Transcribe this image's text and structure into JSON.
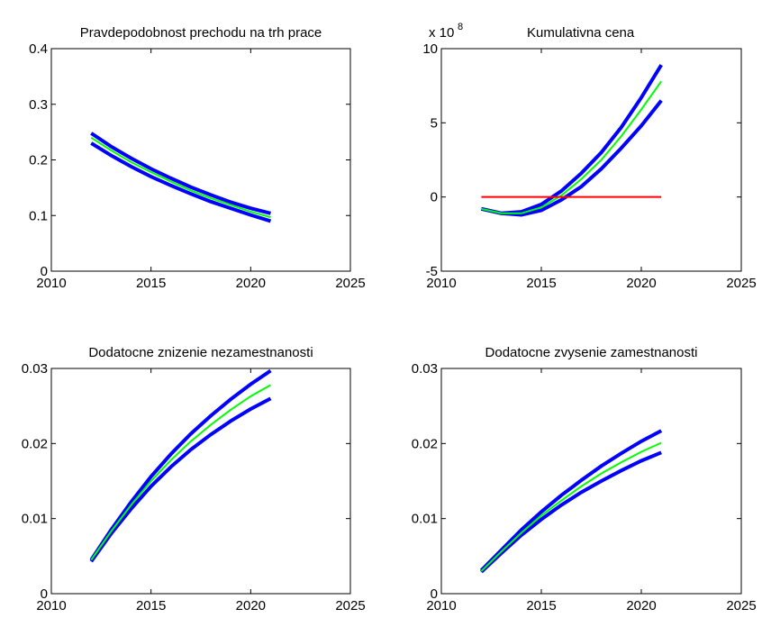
{
  "chart_data": [
    {
      "type": "line",
      "title": "Pravdepodobnost prechodu na trh prace",
      "x": [
        2012,
        2013,
        2014,
        2015,
        2016,
        2017,
        2018,
        2019,
        2020,
        2021
      ],
      "xlim": [
        2010,
        2025
      ],
      "xticks": [
        2010,
        2015,
        2020,
        2025
      ],
      "ylim": [
        0,
        0.4
      ],
      "yticks": [
        0,
        0.1,
        0.2,
        0.3,
        0.4
      ],
      "series": [
        {
          "color": "#0000ff",
          "values": [
            0.248,
            0.224,
            0.203,
            0.184,
            0.167,
            0.151,
            0.137,
            0.124,
            0.113,
            0.104
          ]
        },
        {
          "color": "#0000ff",
          "values": [
            0.23,
            0.208,
            0.188,
            0.17,
            0.154,
            0.139,
            0.125,
            0.113,
            0.101,
            0.09
          ]
        },
        {
          "color": "#00ff00",
          "values": [
            0.24,
            0.217,
            0.196,
            0.178,
            0.161,
            0.145,
            0.131,
            0.119,
            0.107,
            0.097
          ]
        }
      ]
    },
    {
      "type": "line",
      "title": "Kumulativna cena",
      "y_offset_text": "x 10",
      "y_offset_exponent": "8",
      "x": [
        2012,
        2013,
        2014,
        2015,
        2016,
        2017,
        2018,
        2019,
        2020,
        2021
      ],
      "xlim": [
        2010,
        2025
      ],
      "xticks": [
        2010,
        2015,
        2020,
        2025
      ],
      "ylim": [
        -5,
        10
      ],
      "yticks": [
        -5,
        0,
        5,
        10
      ],
      "series": [
        {
          "color": "#0000ff",
          "values": [
            -0.8,
            -1.1,
            -1.0,
            -0.5,
            0.4,
            1.6,
            3.0,
            4.7,
            6.7,
            8.9
          ]
        },
        {
          "color": "#0000ff",
          "values": [
            -0.8,
            -1.1,
            -1.2,
            -0.9,
            -0.2,
            0.7,
            1.9,
            3.3,
            4.8,
            6.5
          ]
        },
        {
          "color": "#00ff00",
          "values": [
            -0.8,
            -1.1,
            -1.1,
            -0.7,
            0.1,
            1.2,
            2.5,
            4.1,
            5.9,
            7.8
          ]
        },
        {
          "color": "#ff0000",
          "values": [
            0,
            0,
            0,
            0,
            0,
            0,
            0,
            0,
            0,
            0
          ]
        }
      ]
    },
    {
      "type": "line",
      "title": "Dodatocne znizenie nezamestnanosti",
      "x": [
        2012,
        2013,
        2014,
        2015,
        2016,
        2017,
        2018,
        2019,
        2020,
        2021
      ],
      "xlim": [
        2010,
        2025
      ],
      "xticks": [
        2010,
        2015,
        2020,
        2025
      ],
      "ylim": [
        0,
        0.03
      ],
      "yticks": [
        0,
        0.01,
        0.02,
        0.03
      ],
      "series": [
        {
          "color": "#0000ff",
          "values": [
            0.0045,
            0.0085,
            0.0122,
            0.0156,
            0.0186,
            0.0213,
            0.0237,
            0.0259,
            0.0279,
            0.0297
          ]
        },
        {
          "color": "#0000ff",
          "values": [
            0.0043,
            0.008,
            0.0113,
            0.0143,
            0.0169,
            0.0192,
            0.0212,
            0.023,
            0.0246,
            0.026
          ]
        },
        {
          "color": "#00ff00",
          "values": [
            0.0045,
            0.0083,
            0.0118,
            0.015,
            0.0178,
            0.0203,
            0.0225,
            0.0245,
            0.0263,
            0.0278
          ]
        }
      ]
    },
    {
      "type": "line",
      "title": "Dodatocne zvysenie zamestnanosti",
      "x": [
        2012,
        2013,
        2014,
        2015,
        2016,
        2017,
        2018,
        2019,
        2020,
        2021
      ],
      "xlim": [
        2010,
        2025
      ],
      "xticks": [
        2010,
        2015,
        2020,
        2025
      ],
      "ylim": [
        0,
        0.03
      ],
      "yticks": [
        0,
        0.01,
        0.02,
        0.03
      ],
      "series": [
        {
          "color": "#0000ff",
          "values": [
            0.0031,
            0.0058,
            0.0085,
            0.0109,
            0.0131,
            0.0151,
            0.017,
            0.0187,
            0.0203,
            0.0217
          ]
        },
        {
          "color": "#0000ff",
          "values": [
            0.0029,
            0.0054,
            0.0078,
            0.0099,
            0.0118,
            0.0135,
            0.015,
            0.0164,
            0.0177,
            0.0188
          ]
        },
        {
          "color": "#00ff00",
          "values": [
            0.003,
            0.0056,
            0.0081,
            0.0104,
            0.0124,
            0.0143,
            0.016,
            0.0175,
            0.0189,
            0.0201
          ]
        }
      ]
    }
  ]
}
